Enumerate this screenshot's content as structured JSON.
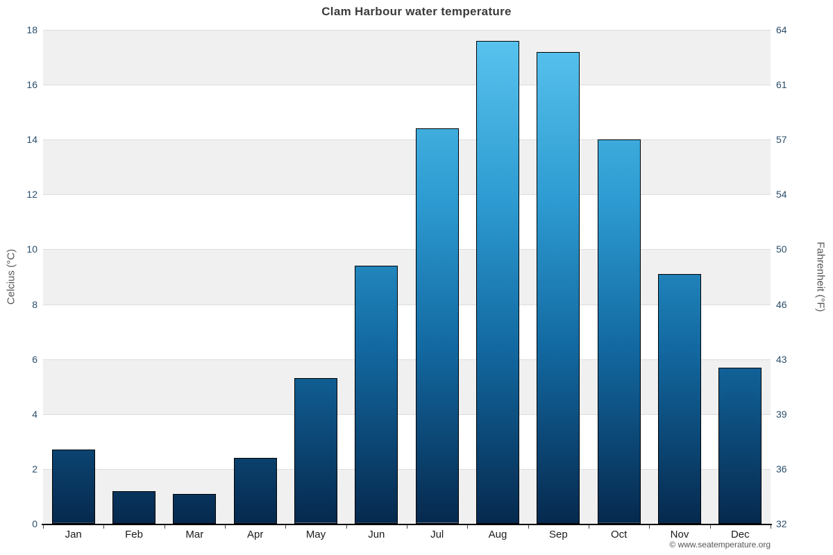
{
  "chart_data": {
    "type": "bar",
    "title": "Clam Harbour water temperature",
    "categories": [
      "Jan",
      "Feb",
      "Mar",
      "Apr",
      "May",
      "Jun",
      "Jul",
      "Aug",
      "Sep",
      "Oct",
      "Nov",
      "Dec"
    ],
    "values": [
      2.7,
      1.2,
      1.1,
      2.4,
      5.3,
      9.4,
      14.4,
      17.6,
      17.2,
      14.0,
      9.1,
      5.7
    ],
    "ylabel_left": "Celcius (°C)",
    "ylabel_right": "Fahrenheit (°F)",
    "ylim_celsius": [
      0,
      18
    ],
    "yticks_celsius": [
      0,
      2,
      4,
      6,
      8,
      10,
      12,
      14,
      16,
      18
    ],
    "yticks_fahrenheit": [
      32,
      36,
      39,
      43,
      46,
      50,
      54,
      57,
      61,
      64
    ],
    "xlabel": "",
    "grid": "horizontal-bands",
    "legend_position": "none"
  },
  "footer": {
    "credit": "© www.seatemperature.org"
  },
  "colors": {
    "bar_gradient_top": "#5bc5f0",
    "bar_gradient_mid1": "#2d9bd1",
    "bar_gradient_mid2": "#1268a0",
    "bar_gradient_bottom": "#06294e",
    "bar_border": "#000000",
    "band_gray": "#f0f0f0",
    "band_white": "#ffffff",
    "gridline": "#dcdcdc",
    "axis_number": "#2a4d69",
    "month_label": "#1a1a1a",
    "axis_line": "#000000",
    "title_color": "#3b3b3b",
    "credit_color": "#555555"
  }
}
